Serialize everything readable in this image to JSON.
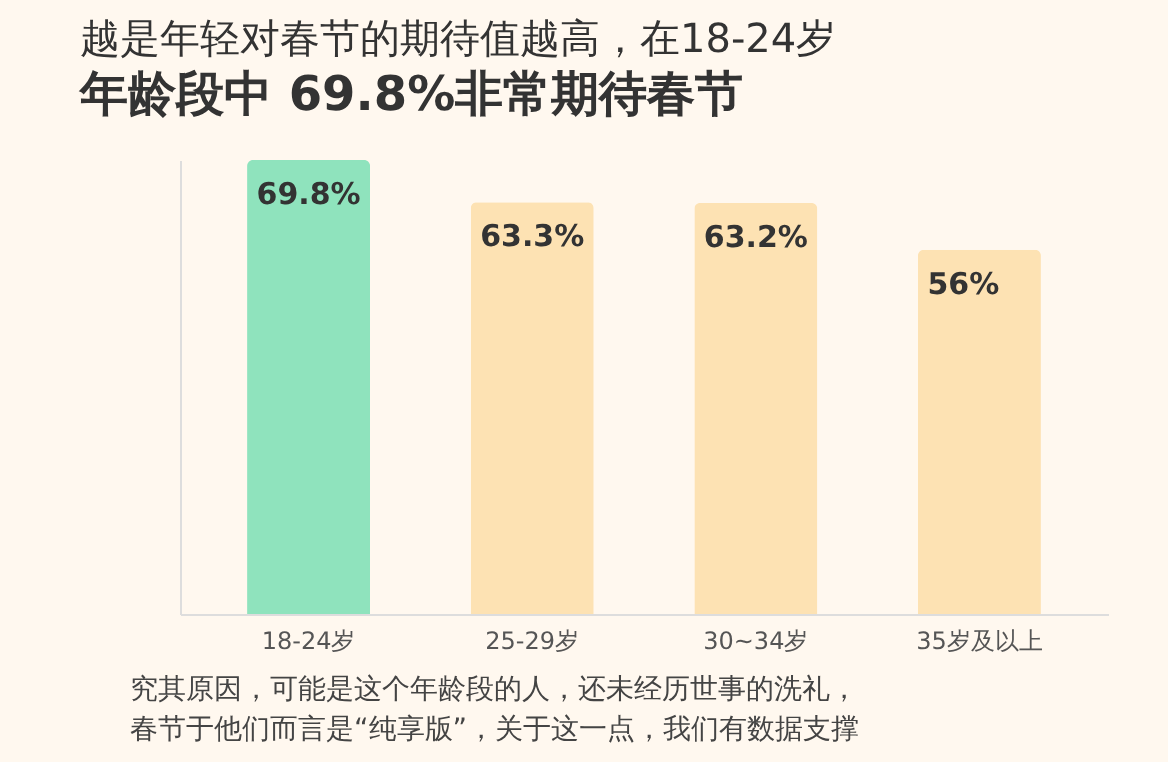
{
  "chart_data": {
    "type": "bar",
    "title": "越是年轻对春节的期待值越高，在18-24岁",
    "subtitle": "年龄段中 69.8%非常期待春节",
    "categories": [
      "18-24岁",
      "25-29岁",
      "30~34岁",
      "35岁及以上"
    ],
    "values": [
      69.8,
      63.3,
      63.2,
      56
    ],
    "colors": [
      "#8fe3bd",
      "#fde2b3",
      "#fde2b3",
      "#fde2b3"
    ],
    "value_labels": [
      "69.8%",
      "63.3%",
      "63.2%",
      "56%"
    ],
    "tick_labels": "x",
    "grid": false,
    "annotations": [
      "究其原因，可能是这个年龄段的人，还未经历世事的洗礼，",
      "春节于他们而言是“纯享版”，关于这一点，我们有数据支撑"
    ]
  }
}
